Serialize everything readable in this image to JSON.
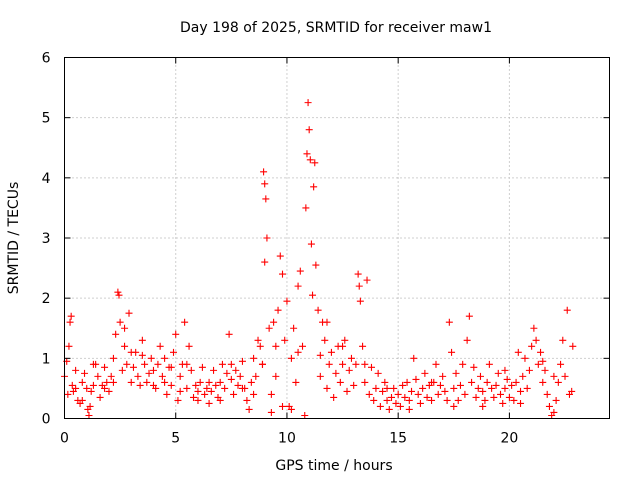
{
  "chart_data": {
    "type": "scatter",
    "title": "Day 198 of 2025, SRMTID for receiver maw1",
    "xlabel": "GPS time / hours",
    "ylabel": "SRMTID / TECUs",
    "xlim": [
      0,
      24.5
    ],
    "ylim": [
      0,
      6
    ],
    "xticks": [
      0,
      5,
      10,
      15,
      20
    ],
    "yticks": [
      0,
      1,
      2,
      3,
      4,
      5,
      6
    ],
    "grid": true,
    "marker": "+",
    "color": "#ff0000",
    "series": [
      {
        "name": "SRMTID",
        "points": [
          [
            0.0,
            0.7
          ],
          [
            0.1,
            0.95
          ],
          [
            0.2,
            1.2
          ],
          [
            0.25,
            1.6
          ],
          [
            0.3,
            1.7
          ],
          [
            0.35,
            0.55
          ],
          [
            0.4,
            0.45
          ],
          [
            0.5,
            0.8
          ],
          [
            0.6,
            0.3
          ],
          [
            0.7,
            0.25
          ],
          [
            0.8,
            0.6
          ],
          [
            0.9,
            0.75
          ],
          [
            1.0,
            0.5
          ],
          [
            1.05,
            0.15
          ],
          [
            1.1,
            0.05
          ],
          [
            1.15,
            0.2
          ],
          [
            1.2,
            0.45
          ],
          [
            1.3,
            0.55
          ],
          [
            1.4,
            0.9
          ],
          [
            1.5,
            0.7
          ],
          [
            1.6,
            0.35
          ],
          [
            1.7,
            0.55
          ],
          [
            1.8,
            0.85
          ],
          [
            1.9,
            0.6
          ],
          [
            2.0,
            0.45
          ],
          [
            2.1,
            0.7
          ],
          [
            2.2,
            1.0
          ],
          [
            2.3,
            1.4
          ],
          [
            2.4,
            2.1
          ],
          [
            2.45,
            2.05
          ],
          [
            2.5,
            1.6
          ],
          [
            2.6,
            0.8
          ],
          [
            2.7,
            1.2
          ],
          [
            2.8,
            0.9
          ],
          [
            2.9,
            1.75
          ],
          [
            3.0,
            0.6
          ],
          [
            3.1,
            0.85
          ],
          [
            3.2,
            1.1
          ],
          [
            3.3,
            0.7
          ],
          [
            3.4,
            0.55
          ],
          [
            3.5,
            1.3
          ],
          [
            3.6,
            0.9
          ],
          [
            3.7,
            0.6
          ],
          [
            3.8,
            0.75
          ],
          [
            3.9,
            1.0
          ],
          [
            4.0,
            0.8
          ],
          [
            4.1,
            0.5
          ],
          [
            4.2,
            0.9
          ],
          [
            4.3,
            1.2
          ],
          [
            4.4,
            0.7
          ],
          [
            4.5,
            0.6
          ],
          [
            4.6,
            0.4
          ],
          [
            4.7,
            0.85
          ],
          [
            4.8,
            0.55
          ],
          [
            4.9,
            1.1
          ],
          [
            5.0,
            1.4
          ],
          [
            5.1,
            0.3
          ],
          [
            5.2,
            0.7
          ],
          [
            5.3,
            0.9
          ],
          [
            5.4,
            1.6
          ],
          [
            5.5,
            0.5
          ],
          [
            5.6,
            1.2
          ],
          [
            5.7,
            0.8
          ],
          [
            5.8,
            0.35
          ],
          [
            5.9,
            0.55
          ],
          [
            6.0,
            0.3
          ],
          [
            6.1,
            0.6
          ],
          [
            6.2,
            0.85
          ],
          [
            6.3,
            0.4
          ],
          [
            6.4,
            0.5
          ],
          [
            6.5,
            0.25
          ],
          [
            6.6,
            0.45
          ],
          [
            6.7,
            0.8
          ],
          [
            6.8,
            0.55
          ],
          [
            6.9,
            0.35
          ],
          [
            7.0,
            0.6
          ],
          [
            7.1,
            0.9
          ],
          [
            7.2,
            0.5
          ],
          [
            7.3,
            0.75
          ],
          [
            7.4,
            1.4
          ],
          [
            7.5,
            0.65
          ],
          [
            7.6,
            0.4
          ],
          [
            7.7,
            0.8
          ],
          [
            7.8,
            0.55
          ],
          [
            7.9,
            0.7
          ],
          [
            8.0,
            0.95
          ],
          [
            8.1,
            0.5
          ],
          [
            8.2,
            0.3
          ],
          [
            8.3,
            0.15
          ],
          [
            8.4,
            0.6
          ],
          [
            8.5,
            1.0
          ],
          [
            8.6,
            0.7
          ],
          [
            8.7,
            1.3
          ],
          [
            8.8,
            1.2
          ],
          [
            8.9,
            0.9
          ],
          [
            8.95,
            4.1
          ],
          [
            9.0,
            3.9
          ],
          [
            9.05,
            3.65
          ],
          [
            9.1,
            3.0
          ],
          [
            9.0,
            2.6
          ],
          [
            9.2,
            1.5
          ],
          [
            9.3,
            0.4
          ],
          [
            9.4,
            1.6
          ],
          [
            9.5,
            0.7
          ],
          [
            9.6,
            1.8
          ],
          [
            9.7,
            2.7
          ],
          [
            9.8,
            2.4
          ],
          [
            9.9,
            1.3
          ],
          [
            10.0,
            1.95
          ],
          [
            10.1,
            0.2
          ],
          [
            10.2,
            1.0
          ],
          [
            10.3,
            1.5
          ],
          [
            10.4,
            0.6
          ],
          [
            10.5,
            2.2
          ],
          [
            10.6,
            2.45
          ],
          [
            10.7,
            1.2
          ],
          [
            10.8,
            0.05
          ],
          [
            10.85,
            3.5
          ],
          [
            10.9,
            4.4
          ],
          [
            10.95,
            5.25
          ],
          [
            11.0,
            4.8
          ],
          [
            11.05,
            4.3
          ],
          [
            11.1,
            2.9
          ],
          [
            11.15,
            2.05
          ],
          [
            11.2,
            3.85
          ],
          [
            11.25,
            4.25
          ],
          [
            11.3,
            2.55
          ],
          [
            11.4,
            1.8
          ],
          [
            11.5,
            0.7
          ],
          [
            11.6,
            1.6
          ],
          [
            11.7,
            1.3
          ],
          [
            11.8,
            0.5
          ],
          [
            11.9,
            0.9
          ],
          [
            12.0,
            1.1
          ],
          [
            12.1,
            0.35
          ],
          [
            12.2,
            0.75
          ],
          [
            12.3,
            1.2
          ],
          [
            12.4,
            0.6
          ],
          [
            12.5,
            0.9
          ],
          [
            12.6,
            1.3
          ],
          [
            12.7,
            0.45
          ],
          [
            12.8,
            0.8
          ],
          [
            12.9,
            1.0
          ],
          [
            13.0,
            0.55
          ],
          [
            13.1,
            0.9
          ],
          [
            13.2,
            2.4
          ],
          [
            13.25,
            2.2
          ],
          [
            13.3,
            1.95
          ],
          [
            13.4,
            1.2
          ],
          [
            13.5,
            0.6
          ],
          [
            13.6,
            2.3
          ],
          [
            13.7,
            0.4
          ],
          [
            13.8,
            0.85
          ],
          [
            13.9,
            0.3
          ],
          [
            14.0,
            0.5
          ],
          [
            14.1,
            0.75
          ],
          [
            14.2,
            0.2
          ],
          [
            14.3,
            0.45
          ],
          [
            14.4,
            0.6
          ],
          [
            14.5,
            0.3
          ],
          [
            14.6,
            0.15
          ],
          [
            14.7,
            0.35
          ],
          [
            14.8,
            0.5
          ],
          [
            14.9,
            0.25
          ],
          [
            15.0,
            0.4
          ],
          [
            15.1,
            0.2
          ],
          [
            15.2,
            0.55
          ],
          [
            15.3,
            0.35
          ],
          [
            15.4,
            0.6
          ],
          [
            15.5,
            0.3
          ],
          [
            15.6,
            0.45
          ],
          [
            15.7,
            1.0
          ],
          [
            15.8,
            0.65
          ],
          [
            15.9,
            0.4
          ],
          [
            16.0,
            0.25
          ],
          [
            16.1,
            0.5
          ],
          [
            16.2,
            0.75
          ],
          [
            16.3,
            0.35
          ],
          [
            16.4,
            0.55
          ],
          [
            16.5,
            0.3
          ],
          [
            16.6,
            0.6
          ],
          [
            16.7,
            0.9
          ],
          [
            16.8,
            0.4
          ],
          [
            16.9,
            0.55
          ],
          [
            17.0,
            0.7
          ],
          [
            17.1,
            0.45
          ],
          [
            17.2,
            0.3
          ],
          [
            17.3,
            1.6
          ],
          [
            17.4,
            1.1
          ],
          [
            17.5,
            0.5
          ],
          [
            17.6,
            0.75
          ],
          [
            17.7,
            0.3
          ],
          [
            17.8,
            0.55
          ],
          [
            17.9,
            0.9
          ],
          [
            18.0,
            0.4
          ],
          [
            18.1,
            1.3
          ],
          [
            18.2,
            1.7
          ],
          [
            18.3,
            0.6
          ],
          [
            18.4,
            0.85
          ],
          [
            18.5,
            0.35
          ],
          [
            18.6,
            0.5
          ],
          [
            18.7,
            0.7
          ],
          [
            18.8,
            0.45
          ],
          [
            18.9,
            0.3
          ],
          [
            19.0,
            0.6
          ],
          [
            19.1,
            0.9
          ],
          [
            19.2,
            0.5
          ],
          [
            19.3,
            0.35
          ],
          [
            19.4,
            0.55
          ],
          [
            19.5,
            0.75
          ],
          [
            19.6,
            0.4
          ],
          [
            19.7,
            0.25
          ],
          [
            19.8,
            0.5
          ],
          [
            19.9,
            0.65
          ],
          [
            20.0,
            0.35
          ],
          [
            20.1,
            0.55
          ],
          [
            20.2,
            0.3
          ],
          [
            20.3,
            0.6
          ],
          [
            20.4,
            1.1
          ],
          [
            20.5,
            0.45
          ],
          [
            20.6,
            0.7
          ],
          [
            20.7,
            1.0
          ],
          [
            20.8,
            0.5
          ],
          [
            20.9,
            0.8
          ],
          [
            21.0,
            1.2
          ],
          [
            21.1,
            1.5
          ],
          [
            21.2,
            1.3
          ],
          [
            21.3,
            0.9
          ],
          [
            21.4,
            1.1
          ],
          [
            21.5,
            0.6
          ],
          [
            21.6,
            0.8
          ],
          [
            21.7,
            0.4
          ],
          [
            21.8,
            0.2
          ],
          [
            21.9,
            0.05
          ],
          [
            22.0,
            0.1
          ],
          [
            22.1,
            0.3
          ],
          [
            22.2,
            0.6
          ],
          [
            22.3,
            0.9
          ],
          [
            22.4,
            1.3
          ],
          [
            22.5,
            0.7
          ],
          [
            22.6,
            1.8
          ],
          [
            22.7,
            0.4
          ],
          [
            22.8,
            0.45
          ],
          [
            22.85,
            1.2
          ],
          [
            22.0,
            0.7
          ],
          [
            21.5,
            0.95
          ],
          [
            20.5,
            0.25
          ],
          [
            19.8,
            0.8
          ],
          [
            18.8,
            0.2
          ],
          [
            17.5,
            0.2
          ],
          [
            16.5,
            0.6
          ],
          [
            15.5,
            0.15
          ],
          [
            14.5,
            0.5
          ],
          [
            13.5,
            0.9
          ],
          [
            12.5,
            1.2
          ],
          [
            11.8,
            1.6
          ],
          [
            11.5,
            1.05
          ],
          [
            10.5,
            1.1
          ],
          [
            10.2,
            0.15
          ],
          [
            9.8,
            0.2
          ],
          [
            9.5,
            1.2
          ],
          [
            9.3,
            0.1
          ],
          [
            8.9,
            0.9
          ],
          [
            8.5,
            0.4
          ],
          [
            8.0,
            0.5
          ],
          [
            7.5,
            0.9
          ],
          [
            7.0,
            0.3
          ],
          [
            6.5,
            0.6
          ],
          [
            6.0,
            0.45
          ],
          [
            5.5,
            0.9
          ],
          [
            5.2,
            0.45
          ],
          [
            4.8,
            0.85
          ],
          [
            4.5,
            1.0
          ],
          [
            4.0,
            0.55
          ],
          [
            3.5,
            1.05
          ],
          [
            3.0,
            1.1
          ],
          [
            2.7,
            1.5
          ],
          [
            2.2,
            0.6
          ],
          [
            1.8,
            0.5
          ],
          [
            1.3,
            0.9
          ],
          [
            0.8,
            0.3
          ],
          [
            0.5,
            0.5
          ],
          [
            0.15,
            0.4
          ]
        ]
      }
    ]
  }
}
